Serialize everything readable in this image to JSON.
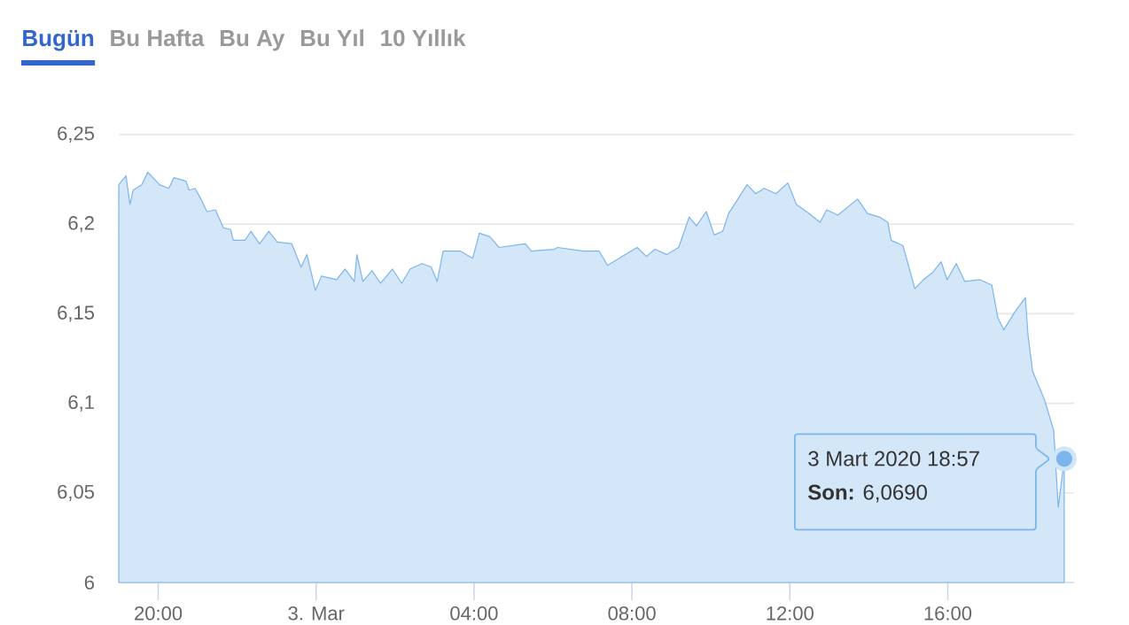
{
  "chart_data": {
    "type": "area",
    "annotations": [
      "Bugün",
      "Bu Hafta",
      "Bu Ay",
      "Bu Yıl",
      "10 Yıllık",
      "3 Mart 2020 18:57",
      "**Son:** 6,0690"
    ],
    "xlim": [
      "2020-03-02T19:00",
      "2020-03-03T19:12"
    ],
    "xticks": [
      {
        "value": "2020-03-02T20:00",
        "label": "20:00"
      },
      {
        "value": "2020-03-03T00:00",
        "label": "3. Mar"
      },
      {
        "value": "2020-03-03T04:00",
        "label": "04:00"
      },
      {
        "value": "2020-03-03T08:00",
        "label": "08:00"
      },
      {
        "value": "2020-03-03T12:00",
        "label": "12:00"
      },
      {
        "value": "2020-03-03T16:00",
        "label": "16:00"
      }
    ],
    "ylim": [
      6,
      6.25
    ],
    "yticks": [
      6,
      {
        "value": 6.05,
        "label": "6,05"
      },
      {
        "value": 6.1,
        "label": "6,1"
      },
      {
        "value": 6.15,
        "label": "6,15"
      },
      {
        "value": 6.2,
        "label": "6,2"
      },
      {
        "value": 6.25,
        "label": "6,25"
      }
    ],
    "grid": "y",
    "series": [
      {
        "color": "#7cb5ec",
        "x": [
          "2020-03-02T19:00",
          "2020-03-02T19:11",
          "2020-03-02T19:17",
          "2020-03-02T19:22",
          "2020-03-02T19:35",
          "2020-03-02T19:44",
          "2020-03-02T20:02",
          "2020-03-02T20:16",
          "2020-03-02T20:24",
          "2020-03-02T20:42",
          "2020-03-02T20:47",
          "2020-03-02T20:56",
          "2020-03-02T21:05",
          "2020-03-02T21:14",
          "2020-03-02T21:27",
          "2020-03-02T21:39",
          "2020-03-02T21:50",
          "2020-03-02T21:54",
          "2020-03-02T22:12",
          "2020-03-02T22:21",
          "2020-03-02T22:34",
          "2020-03-02T22:48",
          "2020-03-02T23:01",
          "2020-03-02T23:23",
          "2020-03-02T23:37",
          "2020-03-02T23:46",
          "2020-03-02T23:59",
          "2020-03-03T00:08",
          "2020-03-03T00:31",
          "2020-03-03T00:44",
          "2020-03-03T00:58",
          "2020-03-03T01:02",
          "2020-03-03T01:11",
          "2020-03-03T01:25",
          "2020-03-03T01:38",
          "2020-03-03T01:56",
          "2020-03-03T02:10",
          "2020-03-03T02:23",
          "2020-03-03T02:41",
          "2020-03-03T02:55",
          "2020-03-03T03:04",
          "2020-03-03T03:13",
          "2020-03-03T03:39",
          "2020-03-03T03:58",
          "2020-03-03T04:08",
          "2020-03-03T04:24",
          "2020-03-03T04:38",
          "2020-03-03T05:18",
          "2020-03-03T05:27",
          "2020-03-03T06:02",
          "2020-03-03T06:07",
          "2020-03-03T06:46",
          "2020-03-03T07:10",
          "2020-03-03T07:23",
          "2020-03-03T07:50",
          "2020-03-03T08:08",
          "2020-03-03T08:22",
          "2020-03-03T08:35",
          "2020-03-03T08:53",
          "2020-03-03T09:11",
          "2020-03-03T09:27",
          "2020-03-03T09:38",
          "2020-03-03T09:53",
          "2020-03-03T10:05",
          "2020-03-03T10:18",
          "2020-03-03T10:27",
          "2020-03-03T10:41",
          "2020-03-03T10:55",
          "2020-03-03T11:08",
          "2020-03-03T11:21",
          "2020-03-03T11:39",
          "2020-03-03T11:57",
          "2020-03-03T12:10",
          "2020-03-03T12:29",
          "2020-03-03T12:46",
          "2020-03-03T12:56",
          "2020-03-03T13:13",
          "2020-03-03T13:43",
          "2020-03-03T13:58",
          "2020-03-03T14:16",
          "2020-03-03T14:29",
          "2020-03-03T14:34",
          "2020-03-03T14:52",
          "2020-03-03T15:10",
          "2020-03-03T15:23",
          "2020-03-03T15:37",
          "2020-03-03T15:50",
          "2020-03-03T15:59",
          "2020-03-03T16:13",
          "2020-03-03T16:26",
          "2020-03-03T16:49",
          "2020-03-03T17:07",
          "2020-03-03T17:16",
          "2020-03-03T17:25",
          "2020-03-03T17:42",
          "2020-03-03T17:58",
          "2020-03-03T18:02",
          "2020-03-03T18:09",
          "2020-03-03T18:27",
          "2020-03-03T18:41",
          "2020-03-03T18:48",
          "2020-03-03T18:57"
        ],
        "values": [
          6.222,
          6.227,
          6.211,
          6.219,
          6.222,
          6.229,
          6.222,
          6.22,
          6.226,
          6.224,
          6.219,
          6.22,
          6.214,
          6.207,
          6.208,
          6.198,
          6.197,
          6.191,
          6.191,
          6.196,
          6.189,
          6.196,
          6.19,
          6.189,
          6.176,
          6.183,
          6.163,
          6.171,
          6.169,
          6.175,
          6.168,
          6.183,
          6.168,
          6.174,
          6.167,
          6.175,
          6.167,
          6.175,
          6.178,
          6.176,
          6.168,
          6.185,
          6.185,
          6.181,
          6.195,
          6.193,
          6.187,
          6.189,
          6.185,
          6.186,
          6.187,
          6.185,
          6.185,
          6.177,
          6.183,
          6.187,
          6.182,
          6.186,
          6.183,
          6.187,
          6.204,
          6.199,
          6.207,
          6.194,
          6.196,
          6.206,
          6.214,
          6.222,
          6.217,
          6.22,
          6.217,
          6.223,
          6.211,
          6.206,
          6.201,
          6.208,
          6.205,
          6.214,
          6.206,
          6.204,
          6.201,
          6.191,
          6.188,
          6.164,
          6.169,
          6.173,
          6.179,
          6.169,
          6.178,
          6.168,
          6.169,
          6.166,
          6.148,
          6.141,
          6.151,
          6.159,
          6.138,
          6.118,
          6.102,
          6.085,
          6.042,
          6.069
        ]
      }
    ]
  }
}
